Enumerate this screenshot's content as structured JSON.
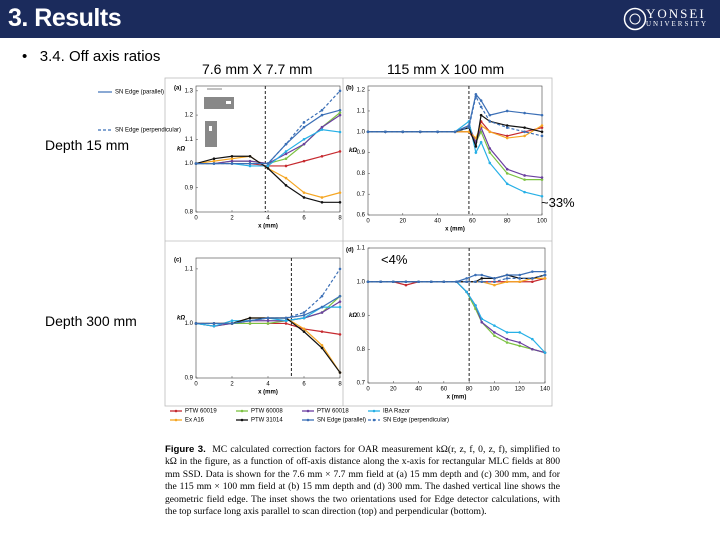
{
  "header": {
    "title": "3. Results",
    "logo": "YONSEI",
    "logo_sub": "UNIVERSITY"
  },
  "bullet": "3.4. Off axis ratios",
  "column_labels": [
    "7.6 mm X 7.7 mm",
    "115 mm X 100 mm"
  ],
  "row_labels": [
    "Depth 15 mm",
    "Depth 300 mm"
  ],
  "annotations": [
    "~33%",
    "<4%"
  ],
  "series_style": [
    {
      "name": "PTW 60019",
      "color": "#c62a2f",
      "dash": false
    },
    {
      "name": "PTW 60008",
      "color": "#7cc242",
      "dash": false
    },
    {
      "name": "PTW 60018",
      "color": "#6b3fa0",
      "dash": false
    },
    {
      "name": "IBA Razor",
      "color": "#27b0e6",
      "dash": false
    },
    {
      "name": "Ex A16",
      "color": "#f5a623",
      "dash": false
    },
    {
      "name": "PTW 31014",
      "color": "#111111",
      "dash": false
    },
    {
      "name": "SN Edge (parallel)",
      "color": "#3b6fb6",
      "dash": false
    },
    {
      "name": "SN Edge (perpendicular)",
      "color": "#3b6fb6",
      "dash": true
    }
  ],
  "chart_data": [
    {
      "type": "line",
      "panel": "(a)",
      "xlabel": "x (mm)",
      "ylabel": "kΩ",
      "field_edge": 3.85,
      "xlim": [
        0,
        8
      ],
      "xticks": [
        0,
        2,
        4,
        6,
        8
      ],
      "ylim": [
        0.8,
        1.32
      ],
      "yticks": [
        0.8,
        0.9,
        {
          "value": 1,
          "label": "1.0"
        },
        1.1,
        1.2,
        1.3
      ],
      "x": [
        0,
        1,
        2,
        3,
        4,
        5,
        6,
        7,
        8
      ],
      "series": [
        {
          "values": [
            1.0,
            1.0,
            1.0,
            1.0,
            0.99,
            0.99,
            1.01,
            1.03,
            1.05
          ]
        },
        {
          "values": [
            1.0,
            1.0,
            1.01,
            1.01,
            1.0,
            1.02,
            1.08,
            1.15,
            1.21
          ]
        },
        {
          "values": [
            1.0,
            1.0,
            1.01,
            1.01,
            1.0,
            1.04,
            1.08,
            1.15,
            1.2
          ]
        },
        {
          "values": [
            1.0,
            1.0,
            1.0,
            0.99,
            0.99,
            1.05,
            1.1,
            1.14,
            1.13
          ]
        },
        {
          "values": [
            1.0,
            1.01,
            1.02,
            1.03,
            0.98,
            0.94,
            0.88,
            0.86,
            0.88
          ]
        },
        {
          "values": [
            1.0,
            1.02,
            1.03,
            1.03,
            0.98,
            0.91,
            0.86,
            0.84,
            0.84
          ]
        },
        {
          "values": [
            1.0,
            1.0,
            1.0,
            1.0,
            1.0,
            1.08,
            1.15,
            1.2,
            1.22
          ]
        },
        {
          "values": [
            1.0,
            1.0,
            1.0,
            1.0,
            1.0,
            1.08,
            1.17,
            1.22,
            1.3
          ]
        }
      ]
    },
    {
      "type": "line",
      "panel": "(b)",
      "xlabel": "x (mm)",
      "ylabel": "kΩ",
      "field_edge": 58,
      "xlim": [
        0,
        100
      ],
      "xticks": [
        0,
        20,
        40,
        60,
        80,
        100
      ],
      "ylim": [
        0.6,
        1.22
      ],
      "yticks": [
        0.6,
        0.7,
        0.8,
        0.9,
        {
          "value": 1,
          "label": "1.0"
        },
        1.1,
        1.2
      ],
      "x": [
        0,
        10,
        20,
        30,
        40,
        50,
        58,
        62,
        65,
        70,
        80,
        90,
        100
      ],
      "series": [
        {
          "values": [
            1,
            1,
            1,
            1,
            1,
            1,
            1.0,
            0.95,
            1.05,
            1.0,
            0.98,
            1.0,
            1.02
          ]
        },
        {
          "values": [
            1,
            1,
            1,
            1,
            1,
            1,
            1.02,
            0.95,
            1.0,
            0.9,
            0.8,
            0.77,
            0.77
          ]
        },
        {
          "values": [
            1,
            1,
            1,
            1,
            1,
            1,
            1.03,
            0.95,
            1.02,
            0.92,
            0.82,
            0.79,
            0.78
          ]
        },
        {
          "values": [
            1,
            1,
            1,
            1,
            1,
            1,
            1.05,
            0.9,
            0.95,
            0.85,
            0.75,
            0.71,
            0.69
          ]
        },
        {
          "values": [
            1,
            1,
            1,
            1,
            1,
            1,
            1.0,
            0.97,
            1.03,
            1.0,
            0.97,
            0.98,
            1.03
          ]
        },
        {
          "values": [
            1,
            1,
            1,
            1,
            1,
            1,
            1.02,
            0.93,
            1.08,
            1.05,
            1.03,
            1.02,
            1.0
          ]
        },
        {
          "values": [
            1,
            1,
            1,
            1,
            1,
            1,
            1.03,
            1.18,
            1.15,
            1.08,
            1.1,
            1.09,
            1.08
          ]
        },
        {
          "values": [
            1,
            1,
            1,
            1,
            1,
            1,
            1.02,
            1.17,
            1.12,
            1.05,
            1.02,
            1.0,
            0.98
          ]
        }
      ]
    },
    {
      "type": "line",
      "panel": "(c)",
      "xlabel": "x (mm)",
      "ylabel": "kΩ",
      "field_edge": 5.3,
      "xlim": [
        0,
        8
      ],
      "xticks": [
        0,
        2,
        4,
        6,
        8
      ],
      "ylim": [
        0.9,
        1.12
      ],
      "yticks": [
        0.9,
        {
          "value": 1,
          "label": "1.0"
        },
        1.1
      ],
      "x": [
        0,
        1,
        2,
        3,
        4,
        5,
        6,
        7,
        8
      ],
      "series": [
        {
          "values": [
            1.0,
            1.0,
            1.0,
            1.0,
            1.0,
            1.0,
            0.99,
            0.985,
            0.98
          ]
        },
        {
          "values": [
            1.0,
            0.995,
            1.0,
            1.0,
            1.0,
            1.005,
            1.01,
            1.02,
            1.05
          ]
        },
        {
          "values": [
            1.0,
            0.995,
            1.0,
            1.005,
            1.005,
            1.005,
            1.01,
            1.02,
            1.04
          ]
        },
        {
          "values": [
            1.0,
            0.995,
            1.005,
            1.005,
            1.01,
            1.005,
            1.01,
            1.03,
            1.03
          ]
        },
        {
          "values": [
            1.0,
            1.0,
            1.0,
            1.01,
            1.01,
            1.01,
            0.99,
            0.96,
            0.91
          ]
        },
        {
          "values": [
            1.0,
            1.0,
            1.0,
            1.01,
            1.01,
            1.01,
            0.985,
            0.955,
            0.91
          ]
        },
        {
          "values": [
            1.0,
            1.0,
            1.0,
            1.005,
            1.01,
            1.01,
            1.015,
            1.03,
            1.05
          ]
        },
        {
          "values": [
            1.0,
            1.0,
            1.0,
            1.005,
            1.01,
            1.01,
            1.02,
            1.05,
            1.1
          ]
        }
      ]
    },
    {
      "type": "line",
      "panel": "(d)",
      "xlabel": "x (mm)",
      "ylabel": "kΩ",
      "field_edge": 80,
      "xlim": [
        0,
        140
      ],
      "xticks": [
        0,
        20,
        40,
        60,
        80,
        100,
        120,
        140
      ],
      "ylim": [
        0.7,
        1.1
      ],
      "yticks": [
        0.7,
        0.8,
        0.9,
        {
          "value": 1,
          "label": "1.0"
        },
        1.1
      ],
      "x": [
        0,
        10,
        20,
        30,
        40,
        50,
        60,
        70,
        78,
        85,
        90,
        100,
        110,
        120,
        130,
        140
      ],
      "series": [
        {
          "values": [
            1,
            1,
            1,
            0.99,
            1,
            1,
            1,
            1,
            1,
            1,
            1,
            1,
            1,
            1,
            1,
            1.01
          ]
        },
        {
          "values": [
            1,
            1,
            1,
            1,
            1,
            1,
            1,
            1,
            0.97,
            0.92,
            0.88,
            0.84,
            0.82,
            0.81,
            0.8,
            0.79
          ]
        },
        {
          "values": [
            1,
            1,
            1,
            1,
            1,
            1,
            1,
            1,
            0.97,
            0.93,
            0.88,
            0.85,
            0.83,
            0.82,
            0.8,
            0.79
          ]
        },
        {
          "values": [
            1,
            1,
            1,
            1,
            1,
            1,
            1,
            1,
            0.97,
            0.93,
            0.89,
            0.87,
            0.85,
            0.85,
            0.83,
            0.79
          ]
        },
        {
          "values": [
            1,
            1,
            1,
            1,
            1,
            1,
            1,
            1,
            1,
            1,
            1,
            0.99,
            1,
            1,
            1.01,
            1.01
          ]
        },
        {
          "values": [
            1,
            1,
            1,
            1,
            1,
            1,
            1,
            1,
            1,
            1,
            1.01,
            1.01,
            1.02,
            1.01,
            1.01,
            1.02
          ]
        },
        {
          "values": [
            1,
            1,
            1,
            1,
            1,
            1,
            1,
            1,
            1.01,
            1.02,
            1.02,
            1.01,
            1.02,
            1.02,
            1.03,
            1.03
          ]
        },
        {
          "values": [
            1,
            1,
            1,
            1,
            1,
            1,
            1,
            1,
            1,
            1,
            1,
            1,
            1.01,
            1.01,
            1.01,
            1.02
          ]
        }
      ]
    }
  ],
  "caption": {
    "label": "Figure 3.",
    "text": "MC calculated correction factors for OAR measurement kΩ(r, z, f, 0, z, f), simplified to kΩ in the figure, as a function of off-axis distance along the x-axis for rectangular MLC fields at 800 mm SSD. Data is shown for the 7.6 mm × 7.7 mm field at (a) 15 mm depth and (c) 300 mm, and for the 115 mm × 100 mm field at (b) 15 mm depth and (d) 300 mm. The dashed vertical line shows the geometric field edge. The inset shows the two orientations used for Edge detector calculations, with the top surface long axis parallel to scan direction (top) and perpendicular (bottom)."
  }
}
